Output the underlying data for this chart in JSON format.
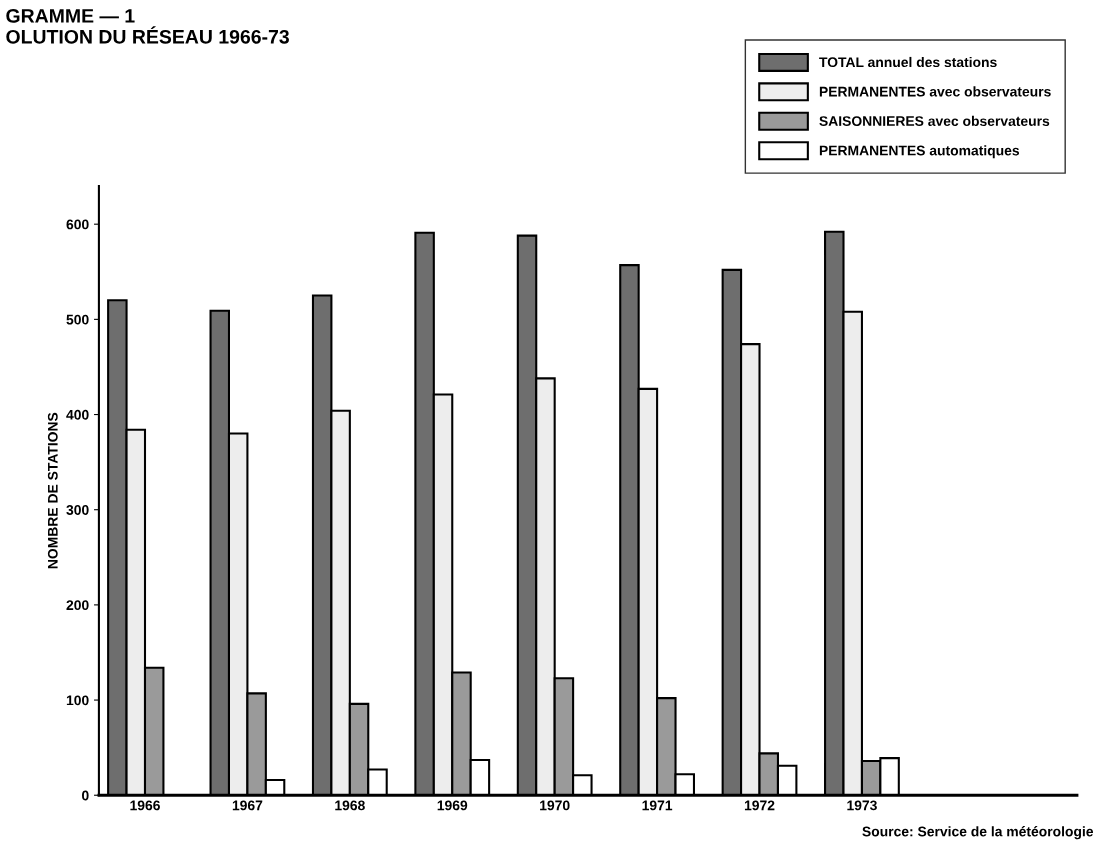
{
  "chart_data": {
    "type": "bar",
    "title": "GRAMME — 1\nOLUTION DU RÉSEAU 1966-73",
    "ylabel": "NOMBRE DE STATIONS",
    "categories": [
      "1966",
      "1967",
      "1968",
      "1969",
      "1970",
      "1971",
      "1972",
      "1973"
    ],
    "series": [
      {
        "name": "TOTAL annuel des stations",
        "color": "#6e6e6e",
        "values": [
          520,
          509,
          525,
          591,
          588,
          557,
          552,
          592
        ]
      },
      {
        "name": "PERMANENTES avec observateurs",
        "color": "#ededed",
        "values": [
          384,
          380,
          404,
          421,
          438,
          427,
          474,
          508
        ]
      },
      {
        "name": "SAISONNIERES avec observateurs",
        "color": "#9a9a9a",
        "values": [
          134,
          107,
          96,
          129,
          123,
          102,
          44,
          36
        ]
      },
      {
        "name": "PERMANENTES automatiques",
        "color": "#ffffff",
        "values": [
          null,
          16,
          27,
          37,
          21,
          22,
          31,
          39
        ]
      }
    ],
    "ylim": [
      0,
      640
    ],
    "yticks": [
      0,
      100,
      200,
      300,
      400,
      500,
      600
    ],
    "legend": "top right",
    "annotations": [
      "Source: Service de la météorologie"
    ]
  }
}
